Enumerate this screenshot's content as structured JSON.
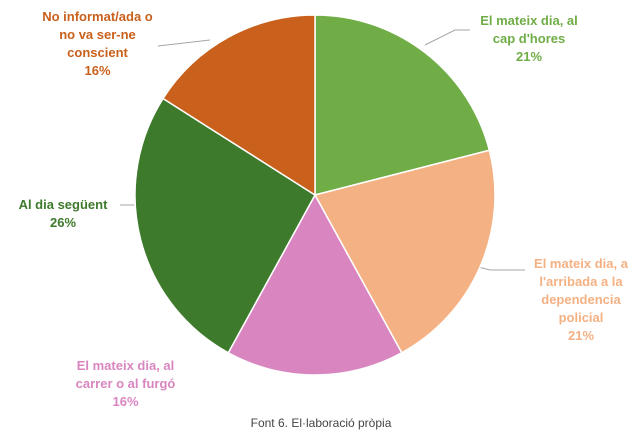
{
  "chart_data": {
    "type": "pie",
    "categories": [
      "El mateix dia, al cap d'hores",
      "El mateix dia, a l'arribada a la dependencia policial",
      "El mateix dia, al carrer o al furgó",
      "Al dia següent",
      "No informat/ada o no va ser-ne conscient"
    ],
    "values": [
      21,
      21,
      16,
      26,
      16
    ],
    "value_labels": [
      "21%",
      "21%",
      "16%",
      "26%",
      "16%"
    ],
    "colors": [
      "#70ad47",
      "#f4b183",
      "#d986c0",
      "#3e7a2c",
      "#c9601c"
    ],
    "caption": "Font 6. El·laboració pròpia"
  }
}
